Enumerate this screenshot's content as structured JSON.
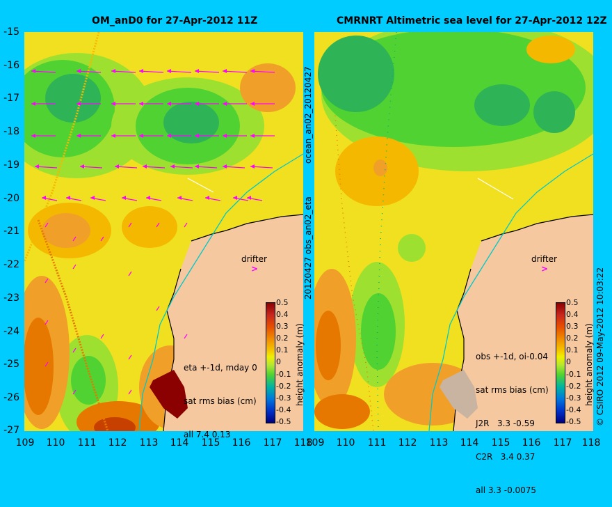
{
  "left_panel": {
    "title": "OM_anD0 for 27-Apr-2012 11Z",
    "legend": [
      "eta +-1d, mday 0",
      "sat rms bias (cm)",
      "all 7.4 0.13"
    ],
    "drifter_label": "drifter",
    "colorbar_label": "height anomaly (m)"
  },
  "right_panel": {
    "title": "CMRNRT Altimetric sea level  for 27-Apr-2012 12Z",
    "legend": [
      "obs +-1d, oi-0.04",
      "sat rms bias (cm)",
      "J2R   3.3 -0.59",
      "C2R   3.4 0.37",
      "all 3.3 -0.0075"
    ],
    "drifter_label": "drifter",
    "colorbar_label": "height anomaly (m)"
  },
  "axes": {
    "y_ticks": [
      "-15",
      "-16",
      "-17",
      "-18",
      "-19",
      "-20",
      "-21",
      "-22",
      "-23",
      "-24",
      "-25",
      "-26",
      "-27"
    ],
    "x_ticks": [
      "109",
      "110",
      "111",
      "112",
      "113",
      "114",
      "115",
      "116",
      "117",
      "118"
    ]
  },
  "colorbar_ticks": [
    "0.5",
    "0.4",
    "0.3",
    "0.2",
    "0.1",
    "0",
    "-0.1",
    "-0.2",
    "-0.3",
    "-0.4",
    "-0.5"
  ],
  "side_label_top": "ocean_an02_20120427",
  "side_label_bottom": "20120427 obs_an02_eta",
  "copyright": "© CSIRO 2012  09-May-2012 10:03:22",
  "colors": {
    "background": "#00ccff",
    "land": "#f5c8a0",
    "coastline": "#000000",
    "vectors": "#ff00ff",
    "high": "#8b0000",
    "low": "#000080"
  }
}
